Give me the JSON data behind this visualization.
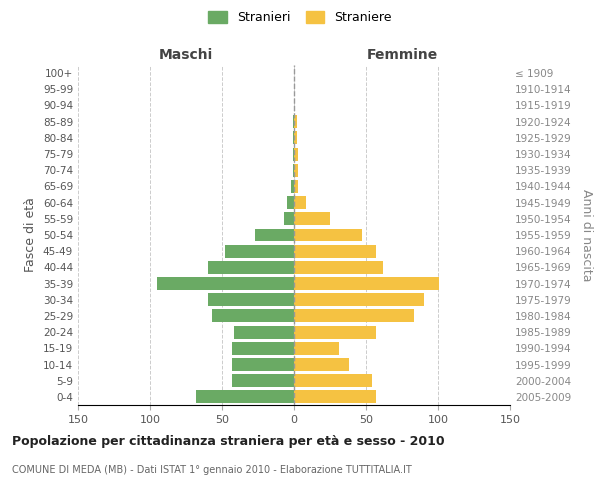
{
  "age_groups": [
    "0-4",
    "5-9",
    "10-14",
    "15-19",
    "20-24",
    "25-29",
    "30-34",
    "35-39",
    "40-44",
    "45-49",
    "50-54",
    "55-59",
    "60-64",
    "65-69",
    "70-74",
    "75-79",
    "80-84",
    "85-89",
    "90-94",
    "95-99",
    "100+"
  ],
  "birth_years": [
    "2005-2009",
    "2000-2004",
    "1995-1999",
    "1990-1994",
    "1985-1989",
    "1980-1984",
    "1975-1979",
    "1970-1974",
    "1965-1969",
    "1960-1964",
    "1955-1959",
    "1950-1954",
    "1945-1949",
    "1940-1944",
    "1935-1939",
    "1930-1934",
    "1925-1929",
    "1920-1924",
    "1915-1919",
    "1910-1914",
    "≤ 1909"
  ],
  "maschi": [
    68,
    43,
    43,
    43,
    42,
    57,
    60,
    95,
    60,
    48,
    27,
    7,
    5,
    2,
    1,
    1,
    1,
    1,
    0,
    0,
    0
  ],
  "femmine": [
    57,
    54,
    38,
    31,
    57,
    83,
    90,
    101,
    62,
    57,
    47,
    25,
    8,
    3,
    3,
    3,
    2,
    2,
    0,
    0,
    0
  ],
  "male_color": "#6aaa64",
  "female_color": "#f5c242",
  "background_color": "#ffffff",
  "grid_color": "#cccccc",
  "title": "Popolazione per cittadinanza straniera per età e sesso - 2010",
  "subtitle": "COMUNE DI MEDA (MB) - Dati ISTAT 1° gennaio 2010 - Elaborazione TUTTITALIA.IT",
  "xlabel_left": "Maschi",
  "xlabel_right": "Femmine",
  "ylabel_left": "Fasce di età",
  "ylabel_right": "Anni di nascita",
  "legend_male": "Stranieri",
  "legend_female": "Straniere",
  "xlim": 150,
  "bar_height": 0.8
}
